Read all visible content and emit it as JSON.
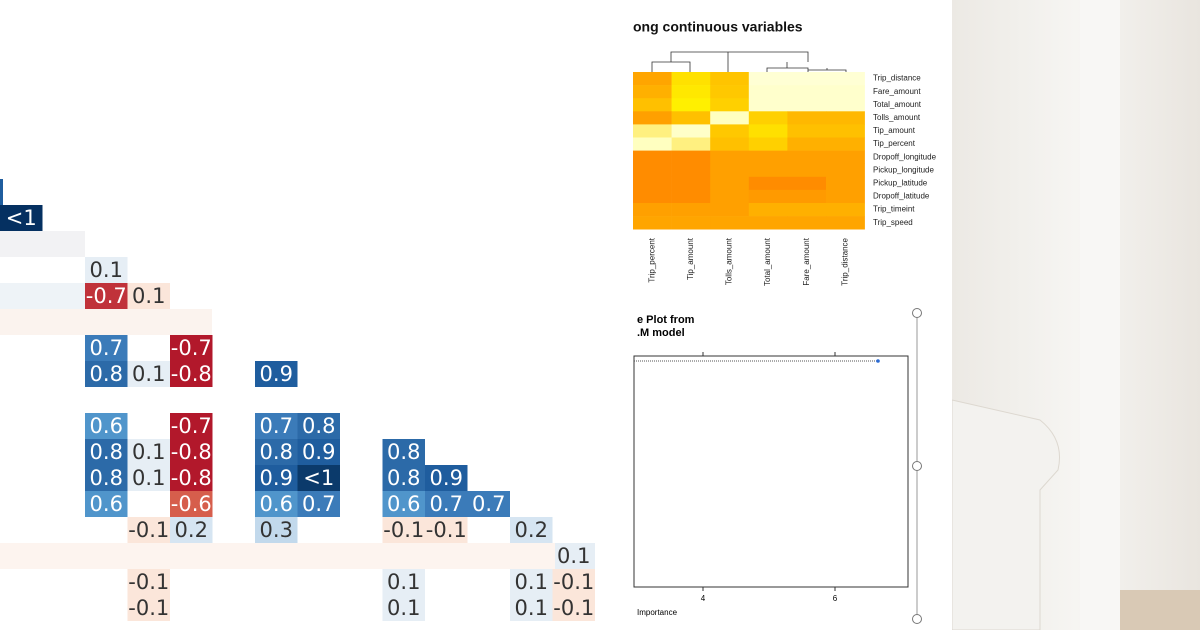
{
  "correlation_matrix": {
    "rows": [
      [
        {
          "text": "<1",
          "fill": "#053061",
          "ink": "#ffffff"
        }
      ],
      [],
      [
        null,
        null,
        {
          "text": "0.1",
          "fill": "#e6eef5",
          "ink": "#333333"
        }
      ],
      [
        null,
        null,
        {
          "text": "-0.7",
          "fill": "#c0323a",
          "ink": "#ffffff"
        },
        {
          "text": "0.1",
          "fill": "#fbe6da",
          "ink": "#333333"
        }
      ],
      [],
      [
        null,
        null,
        {
          "text": "0.7",
          "fill": "#3b7bb9",
          "ink": "#ffffff"
        },
        null,
        {
          "text": "-0.7",
          "fill": "#b2182b",
          "ink": "#ffffff"
        }
      ],
      [
        null,
        null,
        {
          "text": "0.8",
          "fill": "#2c6aa8",
          "ink": "#ffffff"
        },
        {
          "text": "0.1",
          "fill": "#e6eef5",
          "ink": "#333333"
        },
        {
          "text": "-0.8",
          "fill": "#b2182b",
          "ink": "#ffffff"
        },
        null,
        {
          "text": "0.9",
          "fill": "#1f5d9e",
          "ink": "#ffffff"
        }
      ],
      [],
      [
        null,
        null,
        {
          "text": "0.6",
          "fill": "#5095cb",
          "ink": "#ffffff"
        },
        null,
        {
          "text": "-0.7",
          "fill": "#b2182b",
          "ink": "#ffffff"
        },
        null,
        {
          "text": "0.7",
          "fill": "#3b7bb9",
          "ink": "#ffffff"
        },
        {
          "text": "0.8",
          "fill": "#2c6aa8",
          "ink": "#ffffff"
        }
      ],
      [
        null,
        null,
        {
          "text": "0.8",
          "fill": "#2c6aa8",
          "ink": "#ffffff"
        },
        {
          "text": "0.1",
          "fill": "#e6eef5",
          "ink": "#333333"
        },
        {
          "text": "-0.8",
          "fill": "#b2182b",
          "ink": "#ffffff"
        },
        null,
        {
          "text": "0.8",
          "fill": "#2c6aa8",
          "ink": "#ffffff"
        },
        {
          "text": "0.9",
          "fill": "#1f5d9e",
          "ink": "#ffffff"
        },
        null,
        {
          "text": "0.8",
          "fill": "#2c6aa8",
          "ink": "#ffffff"
        }
      ],
      [
        null,
        null,
        {
          "text": "0.8",
          "fill": "#2c6aa8",
          "ink": "#ffffff"
        },
        {
          "text": "0.1",
          "fill": "#e6eef5",
          "ink": "#333333"
        },
        {
          "text": "-0.8",
          "fill": "#b2182b",
          "ink": "#ffffff"
        },
        null,
        {
          "text": "0.9",
          "fill": "#1f5d9e",
          "ink": "#ffffff"
        },
        {
          "text": "<1",
          "fill": "#0b3a6b",
          "ink": "#ffffff"
        },
        null,
        {
          "text": "0.8",
          "fill": "#2c6aa8",
          "ink": "#ffffff"
        },
        {
          "text": "0.9",
          "fill": "#1f5d9e",
          "ink": "#ffffff"
        }
      ],
      [
        null,
        null,
        {
          "text": "0.6",
          "fill": "#5095cb",
          "ink": "#ffffff"
        },
        null,
        {
          "text": "-0.6",
          "fill": "#d65e4c",
          "ink": "#ffffff"
        },
        null,
        {
          "text": "0.6",
          "fill": "#5095cb",
          "ink": "#ffffff"
        },
        {
          "text": "0.7",
          "fill": "#3b7bb9",
          "ink": "#ffffff"
        },
        null,
        {
          "text": "0.6",
          "fill": "#5095cb",
          "ink": "#ffffff"
        },
        {
          "text": "0.7",
          "fill": "#3b7bb9",
          "ink": "#ffffff"
        },
        {
          "text": "0.7",
          "fill": "#3b7bb9",
          "ink": "#ffffff"
        }
      ],
      [
        null,
        null,
        null,
        {
          "text": "-0.1",
          "fill": "#fbe6da",
          "ink": "#333333"
        },
        {
          "text": "0.2",
          "fill": "#d6e5f2",
          "ink": "#333333"
        },
        null,
        {
          "text": "0.3",
          "fill": "#c2d9ec",
          "ink": "#333333"
        },
        null,
        null,
        {
          "text": "-0.1",
          "fill": "#fbe6da",
          "ink": "#333333"
        },
        {
          "text": "-0.1",
          "fill": "#fbe6da",
          "ink": "#333333"
        },
        null,
        {
          "text": "0.2",
          "fill": "#d6e5f2",
          "ink": "#333333"
        }
      ],
      [
        null,
        null,
        null,
        null,
        null,
        null,
        null,
        null,
        null,
        null,
        null,
        null,
        null,
        {
          "text": "0.1",
          "fill": "#e6eef5",
          "ink": "#333333"
        }
      ],
      [
        null,
        null,
        null,
        {
          "text": "-0.1",
          "fill": "#fbe6da",
          "ink": "#333333"
        },
        null,
        null,
        null,
        null,
        null,
        {
          "text": "0.1",
          "fill": "#e6eef5",
          "ink": "#333333"
        },
        null,
        null,
        {
          "text": "0.1",
          "fill": "#e6eef5",
          "ink": "#333333"
        },
        {
          "text": "-0.1",
          "fill": "#fbe6da",
          "ink": "#333333"
        }
      ],
      [
        null,
        null,
        null,
        {
          "text": "-0.1",
          "fill": "#fbe6da",
          "ink": "#333333"
        },
        null,
        null,
        null,
        null,
        null,
        {
          "text": "0.1",
          "fill": "#e6eef5",
          "ink": "#333333"
        },
        null,
        null,
        {
          "text": "0.1",
          "fill": "#e6eef5",
          "ink": "#333333"
        },
        {
          "text": "-0.1",
          "fill": "#fbe6da",
          "ink": "#333333"
        }
      ]
    ]
  },
  "heatmap": {
    "title": "ong continuous variables",
    "row_labels": [
      "Trip_distance",
      "Fare_amount",
      "Total_amount",
      "Tolls_amount",
      "Tip_amount",
      "Tip_percent",
      "Dropoff_longitude",
      "Pickup_longitude",
      "Pickup_latitude",
      "Dropoff_latitude",
      "Trip_timeint",
      "Trip_speed"
    ],
    "column_labels": [
      "Trip_percent",
      "Tip_amount",
      "Tolls_amount",
      "Total_amount",
      "Fare_amount",
      "Trip_distance"
    ],
    "colors": [
      [
        "#ffa500",
        "#ffe100",
        "#ffc400",
        "#ffffd4",
        "#ffffd4",
        "#ffffd4"
      ],
      [
        "#ffb000",
        "#ffe800",
        "#ffc800",
        "#ffffcc",
        "#ffffcc",
        "#ffffcc"
      ],
      [
        "#ffc000",
        "#fff000",
        "#ffd000",
        "#ffffcc",
        "#ffffcc",
        "#ffffcc"
      ],
      [
        "#ffa000",
        "#ffc000",
        "#ffffc0",
        "#ffd000",
        "#ffb800",
        "#ffb800"
      ],
      [
        "#fff080",
        "#ffffc8",
        "#ffc800",
        "#ffe000",
        "#ffc000",
        "#ffc000"
      ],
      [
        "#ffffc0",
        "#fff080",
        "#ffc000",
        "#ffd000",
        "#ffb000",
        "#ffb000"
      ],
      [
        "#ff8c00",
        "#ff8c00",
        "#ffa000",
        "#ffa000",
        "#ffa000",
        "#ffa000"
      ],
      [
        "#ff8c00",
        "#ff8c00",
        "#ffa000",
        "#ffa000",
        "#ffa000",
        "#ffa000"
      ],
      [
        "#ff8c00",
        "#ff8c00",
        "#ffa000",
        "#ff8c00",
        "#ff8c00",
        "#ffa000"
      ],
      [
        "#ff8c00",
        "#ff8c00",
        "#ffa000",
        "#ff9a00",
        "#ff9a00",
        "#ffa000"
      ],
      [
        "#ffa000",
        "#ffa000",
        "#ffa000",
        "#ffb000",
        "#ffb000",
        "#ffb000"
      ],
      [
        "#ffa500",
        "#ffa500",
        "#ffa500",
        "#ffa500",
        "#ffa500",
        "#ffa500"
      ]
    ]
  },
  "importance_plot": {
    "title_lines": [
      "e Plot from",
      ".M model"
    ],
    "x_label": "Importance",
    "x_tick_labels": [
      "4",
      "6"
    ]
  }
}
